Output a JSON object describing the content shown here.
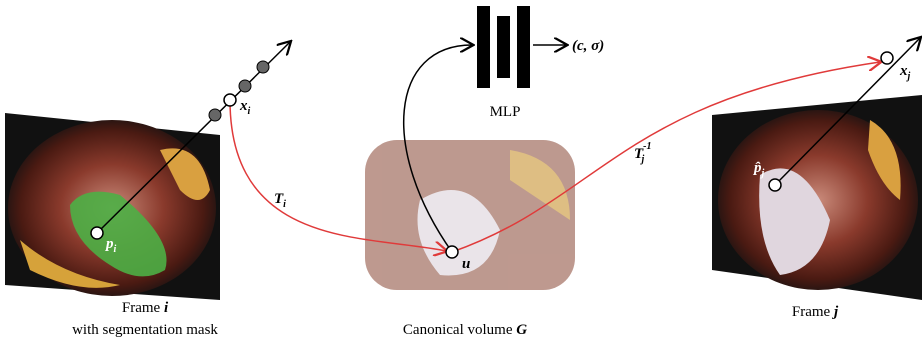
{
  "frame_i": {
    "caption": "Frame",
    "index": "i",
    "subtitle": "with segmentation mask"
  },
  "canonical": {
    "caption": "Canonical volume",
    "symbol": "G"
  },
  "frame_j": {
    "caption": "Frame",
    "index": "j"
  },
  "mlp": {
    "label": "MLP",
    "output": "(c, σ)"
  },
  "points": {
    "x_i": {
      "symbol": "x",
      "sub": "i"
    },
    "p_i": {
      "symbol": "p",
      "sub": "i"
    },
    "u": {
      "symbol": "u"
    },
    "p_j": {
      "symbol": "p̂",
      "sub": "j"
    },
    "x_j": {
      "symbol": "x",
      "sub": "j"
    }
  },
  "transforms": {
    "T_i": {
      "symbol": "T",
      "sub": "i"
    },
    "T_j_inv": {
      "symbol": "T",
      "sub": "j",
      "sup": "-1"
    }
  }
}
